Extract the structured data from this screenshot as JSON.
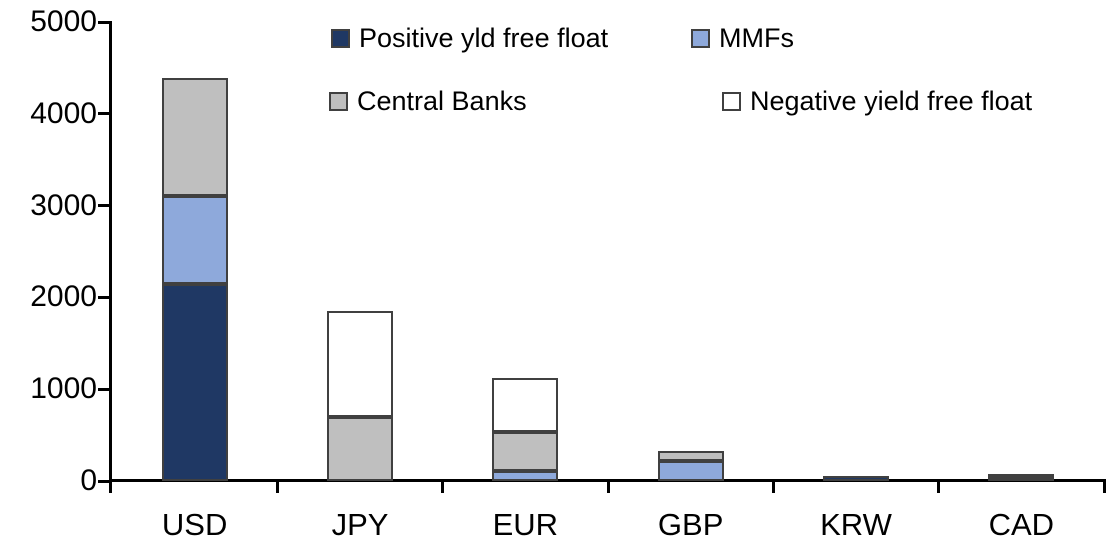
{
  "chart_data": {
    "type": "bar",
    "variant": "stacked-vertical",
    "title": "",
    "categories": [
      "USD",
      "JPY",
      "EUR",
      "GBP",
      "KRW",
      "CAD"
    ],
    "series": [
      {
        "name": "Positive yld free float",
        "color": "#1F3864",
        "values": [
          2150,
          0,
          0,
          0,
          50,
          40
        ]
      },
      {
        "name": "MMFs",
        "color": "#8EA9DB",
        "values": [
          950,
          0,
          105,
          215,
          0,
          0
        ]
      },
      {
        "name": "Central Banks",
        "color": "#BFBFBF",
        "values": [
          1290,
          700,
          430,
          115,
          0,
          40
        ]
      },
      {
        "name": "Negative yield free float",
        "color": "#FFFFFF",
        "values": [
          0,
          1150,
          585,
          0,
          0,
          0
        ]
      }
    ],
    "totals": [
      4390,
      1850,
      1120,
      330,
      50,
      80
    ],
    "xlabel": "",
    "ylabel": "",
    "ylim": [
      0,
      5000
    ],
    "y_tick_step": 1000,
    "y_tick_labels": [
      "0",
      "1000",
      "2000",
      "3000",
      "4000",
      "5000"
    ],
    "grid": false,
    "legend_position": "top-inside",
    "stack_order_bottom_to_top": [
      "Positive yld free float",
      "MMFs",
      "Central Banks",
      "Negative yield free float"
    ]
  },
  "colors": {
    "background": "#FFFFFF",
    "axis": "#000000",
    "segment_border": "#404040",
    "text": "#000000"
  }
}
